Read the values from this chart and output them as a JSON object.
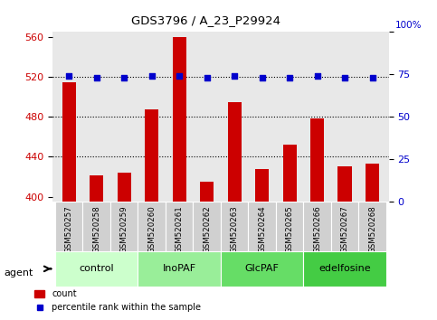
{
  "title": "GDS3796 / A_23_P29924",
  "samples": [
    "GSM520257",
    "GSM520258",
    "GSM520259",
    "GSM520260",
    "GSM520261",
    "GSM520262",
    "GSM520263",
    "GSM520264",
    "GSM520265",
    "GSM520266",
    "GSM520267",
    "GSM520268"
  ],
  "bar_values": [
    515,
    421,
    424,
    487,
    560,
    415,
    495,
    428,
    452,
    478,
    430,
    433
  ],
  "percentile_values": [
    74,
    73,
    73,
    74,
    74,
    73,
    74,
    73,
    73,
    74,
    73,
    73
  ],
  "bar_color": "#cc0000",
  "dot_color": "#0000cc",
  "ylim_left": [
    395,
    565
  ],
  "ylim_right": [
    0,
    100
  ],
  "yticks_left": [
    400,
    440,
    480,
    520,
    560
  ],
  "yticks_right": [
    0,
    25,
    50,
    75,
    100
  ],
  "grid_values": [
    440,
    480,
    520
  ],
  "groups": [
    {
      "label": "control",
      "indices": [
        0,
        1,
        2
      ],
      "color": "#ccffcc"
    },
    {
      "label": "InoPAF",
      "indices": [
        3,
        4,
        5
      ],
      "color": "#99ee99"
    },
    {
      "label": "GlcPAF",
      "indices": [
        6,
        7,
        8
      ],
      "color": "#66dd66"
    },
    {
      "label": "edelfosine",
      "indices": [
        9,
        10,
        11
      ],
      "color": "#44cc44"
    }
  ],
  "agent_label": "agent",
  "legend_count_label": "count",
  "legend_percentile_label": "percentile rank within the sample",
  "bar_width": 0.5,
  "bg_color": "#ffffff",
  "plot_bg_color": "#e8e8e8",
  "left_axis_color": "#cc0000",
  "right_axis_color": "#0000cc"
}
